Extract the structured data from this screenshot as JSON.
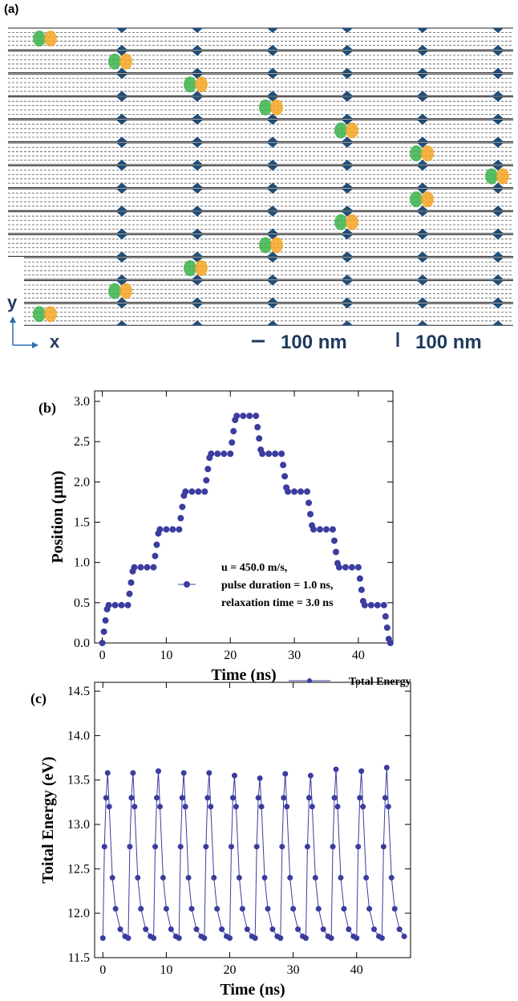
{
  "panel_a": {
    "label": "(a)",
    "axis_y": "y",
    "axis_x": "x",
    "scale_bar_labels": [
      "100 nm",
      "100 nm"
    ]
  },
  "chart_data": [
    {
      "type": "scatter",
      "label": "(b)",
      "xlabel": "Time (ns)",
      "ylabel": "Position (μm)",
      "legend_lines": [
        "u = 450.0 m/s,",
        "pulse duration = 1.0 ns,",
        "relaxation time = 3.0 ns"
      ],
      "xlim": [
        -1.2,
        45.4
      ],
      "ylim": [
        0,
        3.13
      ],
      "xticks": [
        0,
        10,
        20,
        30,
        40
      ],
      "yticks": [
        {
          "value": 0,
          "label": "0.0"
        },
        0.5,
        {
          "value": 1,
          "label": "1.0"
        },
        1.5,
        {
          "value": 2,
          "label": "2.0"
        },
        2.5,
        {
          "value": 3,
          "label": "3.0"
        }
      ],
      "x": [
        0,
        0.25,
        0.5,
        0.75,
        1,
        2,
        3,
        4,
        4.25,
        4.5,
        4.75,
        5,
        6,
        7,
        8,
        8.25,
        8.5,
        8.75,
        9,
        10,
        11,
        12,
        12.25,
        12.5,
        12.75,
        13,
        14,
        15,
        16,
        16.25,
        16.5,
        16.75,
        17,
        18,
        19,
        20,
        20.25,
        20.5,
        20.75,
        21,
        22,
        23,
        24,
        24.25,
        24.5,
        24.75,
        25,
        26,
        27,
        28,
        28.25,
        28.5,
        28.75,
        29,
        30,
        31,
        32,
        32.25,
        32.5,
        32.75,
        33,
        34,
        35,
        36,
        36.25,
        36.5,
        36.75,
        37,
        38,
        39,
        40,
        40.25,
        40.5,
        40.75,
        41,
        42,
        43,
        44,
        44.25,
        44.5,
        44.75,
        45
      ],
      "series": [
        {
          "color": "#3b3ca0",
          "values": [
            0,
            0.14,
            0.28,
            0.42,
            0.47,
            0.47,
            0.47,
            0.47,
            0.61,
            0.75,
            0.89,
            0.94,
            0.94,
            0.94,
            0.94,
            1.08,
            1.22,
            1.36,
            1.41,
            1.41,
            1.41,
            1.41,
            1.55,
            1.69,
            1.83,
            1.88,
            1.88,
            1.88,
            1.88,
            2.02,
            2.16,
            2.3,
            2.35,
            2.35,
            2.35,
            2.35,
            2.49,
            2.63,
            2.77,
            2.82,
            2.82,
            2.82,
            2.82,
            2.68,
            2.54,
            2.4,
            2.35,
            2.35,
            2.35,
            2.35,
            2.21,
            2.07,
            1.93,
            1.88,
            1.88,
            1.88,
            1.88,
            1.74,
            1.6,
            1.46,
            1.41,
            1.41,
            1.41,
            1.41,
            1.27,
            1.13,
            0.99,
            0.94,
            0.94,
            0.94,
            0.94,
            0.8,
            0.66,
            0.52,
            0.47,
            0.47,
            0.47,
            0.47,
            0.33,
            0.19,
            0.05,
            0
          ]
        }
      ]
    },
    {
      "type": "line",
      "label": "(c)",
      "xlabel": "Time (ns)",
      "ylabel": "Toital Energy (eV)",
      "xlim": [
        -1.3,
        48.5
      ],
      "ylim": [
        11.5,
        14.6
      ],
      "xticks": [
        0,
        10,
        20,
        30,
        40
      ],
      "yticks": [
        11.5,
        {
          "value": 12,
          "label": "12.0"
        },
        12.5,
        {
          "value": 13,
          "label": "13.0"
        },
        13.5,
        {
          "value": 14,
          "label": "14.0"
        },
        14.5
      ],
      "x": [
        0,
        0.25,
        0.5,
        0.75,
        1,
        1.5,
        2,
        2.75,
        3.5,
        4,
        4.25,
        4.5,
        4.75,
        5,
        5.5,
        6,
        6.75,
        7.5,
        8,
        8.25,
        8.5,
        8.75,
        9,
        9.5,
        10,
        10.75,
        11.5,
        12,
        12.25,
        12.5,
        12.75,
        13,
        13.5,
        14,
        14.75,
        15.5,
        16,
        16.25,
        16.5,
        16.75,
        17,
        17.5,
        18,
        18.75,
        19.5,
        20,
        20.25,
        20.5,
        20.75,
        21,
        21.5,
        22,
        22.75,
        23.5,
        24,
        24.25,
        24.5,
        24.75,
        25,
        25.5,
        26,
        26.75,
        27.5,
        28,
        28.25,
        28.5,
        28.75,
        29,
        29.5,
        30,
        30.75,
        31.5,
        32,
        32.25,
        32.5,
        32.75,
        33,
        33.5,
        34,
        34.75,
        35.5,
        36,
        36.25,
        36.5,
        36.75,
        37,
        37.5,
        38,
        38.75,
        39.5,
        40,
        40.25,
        40.5,
        40.75,
        41,
        41.5,
        42,
        42.75,
        43.5,
        44,
        44.25,
        44.5,
        44.75,
        45,
        45.5,
        46,
        46.75,
        47.5
      ],
      "series": [
        {
          "name": "Total Energy",
          "color": "#3b3ca0",
          "values": [
            11.72,
            12.75,
            13.3,
            13.58,
            13.2,
            12.4,
            12.05,
            11.82,
            11.74,
            11.72,
            12.75,
            13.3,
            13.58,
            13.2,
            12.4,
            12.05,
            11.82,
            11.74,
            11.72,
            12.75,
            13.3,
            13.6,
            13.2,
            12.4,
            12.05,
            11.82,
            11.74,
            11.72,
            12.75,
            13.3,
            13.58,
            13.2,
            12.4,
            12.05,
            11.82,
            11.74,
            11.72,
            12.75,
            13.3,
            13.58,
            13.2,
            12.4,
            12.05,
            11.82,
            11.74,
            11.72,
            12.75,
            13.3,
            13.55,
            13.2,
            12.4,
            12.05,
            11.82,
            11.74,
            11.72,
            12.75,
            13.3,
            13.52,
            13.2,
            12.4,
            12.05,
            11.82,
            11.74,
            11.72,
            12.75,
            13.3,
            13.57,
            13.2,
            12.4,
            12.05,
            11.82,
            11.74,
            11.72,
            12.75,
            13.3,
            13.55,
            13.2,
            12.4,
            12.05,
            11.82,
            11.74,
            11.72,
            12.75,
            13.3,
            13.62,
            13.2,
            12.4,
            12.05,
            11.82,
            11.74,
            11.72,
            12.75,
            13.3,
            13.6,
            13.2,
            12.4,
            12.05,
            11.82,
            11.74,
            11.72,
            12.75,
            13.3,
            13.64,
            13.2,
            12.4,
            12.05,
            11.82,
            11.74
          ]
        }
      ]
    }
  ]
}
